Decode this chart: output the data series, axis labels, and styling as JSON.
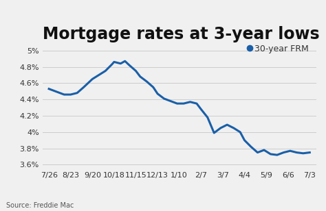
{
  "title": "Mortgage rates at 3-year lows",
  "legend_label": "30-year FRM",
  "source_text": "Source: Freddie Mac",
  "line_color": "#1a5fa8",
  "marker_color": "#1a5fa8",
  "background_color": "#f0f0f0",
  "x_labels": [
    "7/26",
    "8/23",
    "9/20",
    "10/18",
    "11/15",
    "12/13",
    "1/10",
    "2/7",
    "3/7",
    "4/4",
    "5/9",
    "6/6",
    "7/3"
  ],
  "ylim": [
    3.55,
    5.05
  ],
  "yticks": [
    3.6,
    3.8,
    4.0,
    4.2,
    4.4,
    4.6,
    4.8,
    5.0
  ],
  "title_fontsize": 17,
  "axis_fontsize": 8,
  "legend_fontsize": 9,
  "line_width": 2.2,
  "detailed_x": [
    0,
    0.3,
    0.7,
    1.0,
    1.3,
    1.6,
    2.0,
    2.3,
    2.6,
    2.9,
    3.0,
    3.3,
    3.5,
    3.7,
    4.0,
    4.2,
    4.5,
    4.8,
    5.0,
    5.3,
    5.6,
    5.9,
    6.2,
    6.5,
    6.8,
    7.0,
    7.3,
    7.6,
    7.9,
    8.2,
    8.5,
    8.8,
    9.0,
    9.3,
    9.6,
    9.9,
    10.2,
    10.5,
    10.8,
    11.1,
    11.4,
    11.7,
    12.0
  ],
  "detailed_y": [
    4.53,
    4.5,
    4.46,
    4.46,
    4.48,
    4.55,
    4.65,
    4.7,
    4.75,
    4.83,
    4.86,
    4.84,
    4.87,
    4.82,
    4.75,
    4.68,
    4.62,
    4.55,
    4.47,
    4.41,
    4.38,
    4.35,
    4.35,
    4.37,
    4.35,
    4.28,
    4.18,
    3.99,
    4.05,
    4.09,
    4.05,
    4.0,
    3.9,
    3.82,
    3.75,
    3.78,
    3.73,
    3.72,
    3.75,
    3.77,
    3.75,
    3.74,
    3.75
  ]
}
